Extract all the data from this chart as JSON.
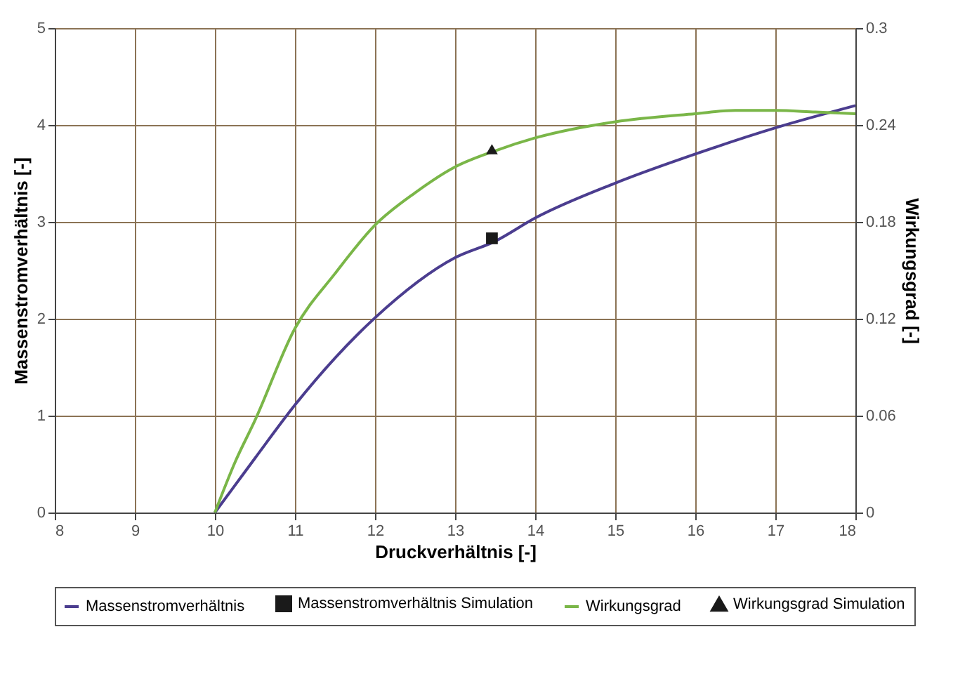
{
  "chart_data": {
    "type": "line",
    "xlabel": "Druckverhältnis [-]",
    "ylabel": "Massenstromverhältnis [-]",
    "y2label": "Wirkungsgrad [-]",
    "xlim": [
      8,
      18
    ],
    "xticks": [
      8,
      9,
      10,
      11,
      12,
      13,
      14,
      15,
      16,
      17,
      18
    ],
    "ylim": [
      0,
      5
    ],
    "yticks": [
      0,
      1,
      2,
      3,
      4,
      5
    ],
    "y2lim": [
      0,
      0.3
    ],
    "y2ticks": [
      0,
      0.06,
      0.12,
      0.18,
      0.24,
      0.3
    ],
    "grid": true,
    "legend": "bottom",
    "series": [
      {
        "name": "Massenstromverhältnis",
        "marker": "none",
        "line_style": "solid",
        "color": "#4b3d8f",
        "x": [
          10,
          10.25,
          10.5,
          11,
          12,
          13,
          13.5,
          14,
          15,
          16,
          17,
          18
        ],
        "values": [
          0,
          0.28,
          0.56,
          1.11,
          2.01,
          2.63,
          2.8,
          3.04,
          3.4,
          3.7,
          3.97,
          4.2
        ]
      },
      {
        "name": "Massenstromverhältnis Simulation",
        "type": "scatter",
        "marker": "square",
        "color": "#1a1a1a",
        "x": [
          13.46
        ],
        "values": [
          2.83
        ]
      },
      {
        "name": "Wirkungsgrad",
        "marker": "none",
        "line_style": "solid",
        "axis": "y2",
        "color": "#7ab648",
        "x": [
          10,
          10.25,
          10.5,
          11,
          11.5,
          12,
          12.5,
          13,
          13.5,
          14,
          15,
          16,
          16.5,
          17,
          17.5,
          18
        ],
        "values": [
          0,
          0.031,
          0.057,
          0.114,
          0.148,
          0.178,
          0.198,
          0.214,
          0.224,
          0.232,
          0.242,
          0.247,
          0.249,
          0.249,
          0.248,
          0.247
        ]
      },
      {
        "name": "Wirkungsgrad Simulation",
        "type": "scatter",
        "marker": "triangle",
        "axis": "y2",
        "color": "#1a1a1a",
        "x": [
          13.46
        ],
        "values": [
          0.225
        ]
      }
    ]
  }
}
